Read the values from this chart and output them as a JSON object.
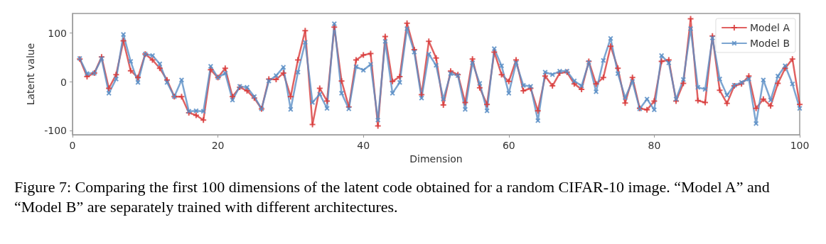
{
  "chart_data": {
    "type": "line",
    "xlabel": "Dimension",
    "ylabel": "Latent value",
    "x": [
      1,
      2,
      3,
      4,
      5,
      6,
      7,
      8,
      9,
      10,
      11,
      12,
      13,
      14,
      15,
      16,
      17,
      18,
      19,
      20,
      21,
      22,
      23,
      24,
      25,
      26,
      27,
      28,
      29,
      30,
      31,
      32,
      33,
      34,
      35,
      36,
      37,
      38,
      39,
      40,
      41,
      42,
      43,
      44,
      45,
      46,
      47,
      48,
      49,
      50,
      51,
      52,
      53,
      54,
      55,
      56,
      57,
      58,
      59,
      60,
      61,
      62,
      63,
      64,
      65,
      66,
      67,
      68,
      69,
      70,
      71,
      72,
      73,
      74,
      75,
      76,
      77,
      78,
      79,
      80,
      81,
      82,
      83,
      84,
      85,
      86,
      87,
      88,
      89,
      90,
      91,
      92,
      93,
      94,
      95,
      96,
      97,
      98,
      99,
      100
    ],
    "series": [
      {
        "name": "Model A",
        "color": "#d83a3a",
        "marker": "cross",
        "values": [
          47,
          11,
          18,
          51,
          -13,
          15,
          84,
          23,
          9,
          57,
          45,
          28,
          4,
          -30,
          -30,
          -63,
          -68,
          -78,
          25,
          9,
          28,
          -30,
          -11,
          -18,
          -33,
          -55,
          6,
          5,
          18,
          -30,
          45,
          105,
          -87,
          -13,
          -39,
          112,
          2,
          -51,
          45,
          55,
          58,
          -90,
          93,
          1,
          11,
          120,
          66,
          -26,
          83,
          49,
          -47,
          22,
          15,
          -42,
          47,
          -12,
          -46,
          61,
          15,
          1,
          45,
          -18,
          -13,
          -59,
          12,
          -8,
          18,
          20,
          -4,
          -15,
          42,
          -4,
          9,
          73,
          28,
          -43,
          9,
          -54,
          -57,
          -39,
          42,
          45,
          -39,
          -3,
          129,
          -38,
          -42,
          94,
          -17,
          -44,
          -8,
          -4,
          12,
          -54,
          -35,
          -49,
          -3,
          28,
          47,
          -46
        ]
      },
      {
        "name": "Model B",
        "color": "#5b8ec6",
        "marker": "cross",
        "values": [
          48,
          17,
          18,
          48,
          -23,
          6,
          97,
          42,
          -1,
          57,
          54,
          37,
          -1,
          -30,
          4,
          -60,
          -59,
          -60,
          32,
          9,
          18,
          -37,
          -9,
          -11,
          -30,
          -55,
          2,
          13,
          30,
          -56,
          20,
          81,
          -42,
          -25,
          -54,
          119,
          -23,
          -55,
          31,
          24,
          36,
          -78,
          83,
          -23,
          -1,
          109,
          61,
          -33,
          57,
          34,
          -35,
          17,
          13,
          -56,
          39,
          -3,
          -59,
          68,
          33,
          -23,
          39,
          -7,
          -9,
          -79,
          20,
          15,
          22,
          22,
          2,
          -8,
          40,
          -20,
          44,
          89,
          17,
          -32,
          1,
          -55,
          -35,
          -57,
          54,
          39,
          -35,
          5,
          109,
          -11,
          -15,
          90,
          6,
          -27,
          -7,
          -1,
          6,
          -85,
          4,
          -37,
          12,
          33,
          -4,
          -54
        ]
      }
    ],
    "xlim": [
      0,
      100
    ],
    "xticks": [
      0,
      20,
      40,
      60,
      80,
      100
    ],
    "ylim": [
      -108,
      140
    ],
    "yticks": [
      -100,
      0,
      100
    ],
    "grid": false,
    "legend": "top right",
    "line_style": "solid",
    "annotations": [
      "Figure 7: Comparing the first 100 dimensions of the latent code obtained for a random CIFAR-10 image. “Model A” and “Model B” are separately trained with different architectures."
    ]
  }
}
